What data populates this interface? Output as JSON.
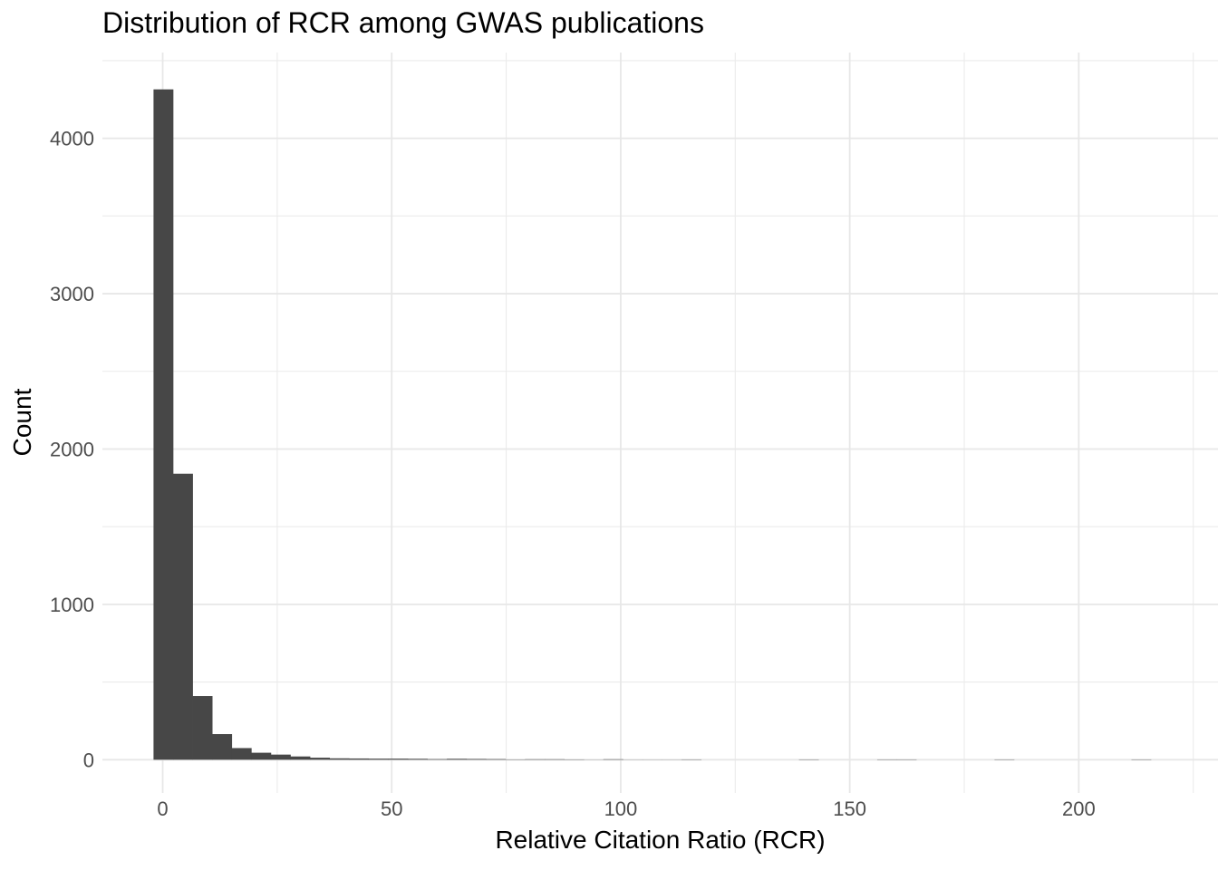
{
  "chart_data": {
    "type": "bar",
    "subtype": "histogram",
    "title": "Distribution of RCR among GWAS publications",
    "xlabel": "Relative Citation Ratio (RCR)",
    "ylabel": "Count",
    "x_major_ticks": [
      0,
      50,
      100,
      150,
      200
    ],
    "x_minor_ticks": [
      25,
      75,
      125,
      175,
      225
    ],
    "y_major_ticks": [
      0,
      1000,
      2000,
      3000,
      4000
    ],
    "y_minor_ticks": [
      500,
      1500,
      2500,
      3500,
      4500
    ],
    "xlim": [
      -13.16,
      230.4
    ],
    "ylim": [
      -214,
      4552
    ],
    "grid": true,
    "legend": false,
    "bin_start": -2.0,
    "bin_width": 4.27,
    "counts": [
      4315,
      1841,
      410,
      165,
      75,
      45,
      33,
      21,
      13,
      9,
      8,
      7,
      7,
      6,
      4,
      6,
      5,
      4,
      2,
      3,
      3,
      2,
      1,
      3,
      1,
      1,
      1,
      2,
      0,
      0,
      0,
      0,
      0,
      2,
      0,
      0,
      0,
      2,
      2,
      0,
      0,
      0,
      0,
      2,
      0,
      0,
      0,
      0,
      0,
      0,
      2,
      0
    ],
    "colors": {
      "bar": "#474747",
      "grid_major": "#e7e7e7",
      "grid_minor": "#ebebeb",
      "tick_label": "#4d4d4d",
      "title": "#000000",
      "background": "#ffffff"
    }
  }
}
